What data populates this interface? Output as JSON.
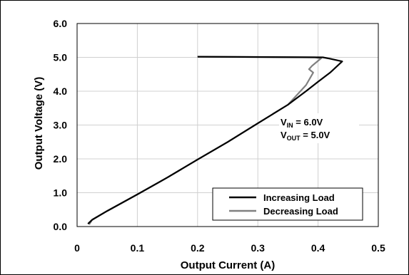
{
  "chart_data": {
    "type": "line",
    "xlabel": "Output Current (A)",
    "ylabel": "Output Voltage (V)",
    "xlim": [
      0,
      0.5
    ],
    "ylim": [
      0,
      6.0
    ],
    "x_ticks": [
      "0",
      "0.1",
      "0.2",
      "0.3",
      "0.4",
      "0.5"
    ],
    "y_ticks": [
      "0.0",
      "1.0",
      "2.0",
      "3.0",
      "4.0",
      "5.0",
      "6.0"
    ],
    "grid": true,
    "legend_position": "bottom-right",
    "annotation": {
      "line1": {
        "main": "V",
        "sub": "IN",
        "rest": " = 6.0V"
      },
      "line2": {
        "main": "V",
        "sub": "OUT",
        "rest": " = 5.0V"
      }
    },
    "series": [
      {
        "name": "Increasing Load",
        "color": "#000000",
        "points": [
          [
            0.018,
            0.08
          ],
          [
            0.025,
            0.2
          ],
          [
            0.05,
            0.46
          ],
          [
            0.1,
            0.95
          ],
          [
            0.15,
            1.45
          ],
          [
            0.2,
            1.98
          ],
          [
            0.25,
            2.5
          ],
          [
            0.3,
            3.05
          ],
          [
            0.35,
            3.6
          ],
          [
            0.38,
            4.0
          ],
          [
            0.4,
            4.28
          ],
          [
            0.42,
            4.55
          ],
          [
            0.44,
            4.88
          ],
          [
            0.42,
            4.96
          ],
          [
            0.408,
            5.0
          ],
          [
            0.2,
            5.02
          ]
        ]
      },
      {
        "name": "Decreasing Load",
        "color": "#808080",
        "points": [
          [
            0.2,
            5.02
          ],
          [
            0.395,
            5.0
          ],
          [
            0.405,
            4.97
          ],
          [
            0.39,
            4.75
          ],
          [
            0.385,
            4.65
          ],
          [
            0.392,
            4.55
          ],
          [
            0.38,
            4.18
          ],
          [
            0.35,
            3.6
          ],
          [
            0.3,
            3.05
          ],
          [
            0.25,
            2.5
          ],
          [
            0.2,
            1.98
          ],
          [
            0.15,
            1.45
          ],
          [
            0.1,
            0.95
          ],
          [
            0.05,
            0.46
          ],
          [
            0.025,
            0.2
          ],
          [
            0.02,
            0.06
          ]
        ]
      }
    ]
  }
}
